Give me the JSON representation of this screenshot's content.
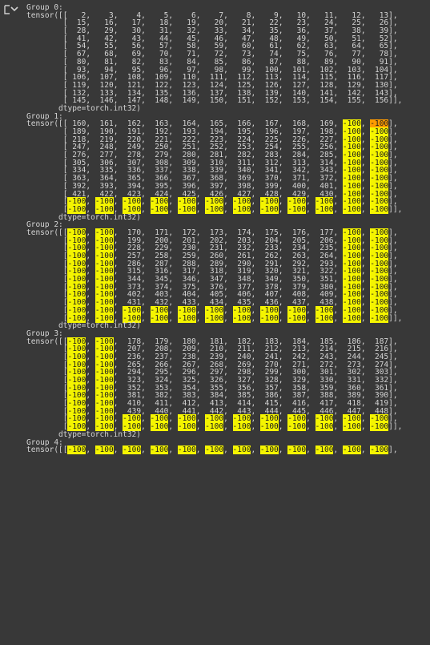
{
  "output": {
    "groups": [
      {
        "header": "Group 0:",
        "rows": [
          [
            2,
            3,
            4,
            5,
            6,
            7,
            8,
            9,
            10,
            11,
            12,
            13
          ],
          [
            15,
            16,
            17,
            18,
            19,
            20,
            21,
            22,
            23,
            24,
            25,
            26
          ],
          [
            28,
            29,
            30,
            31,
            32,
            33,
            34,
            35,
            36,
            37,
            38,
            39
          ],
          [
            41,
            42,
            43,
            44,
            45,
            46,
            47,
            48,
            49,
            50,
            51,
            52
          ],
          [
            54,
            55,
            56,
            57,
            58,
            59,
            60,
            61,
            62,
            63,
            64,
            65
          ],
          [
            67,
            68,
            69,
            70,
            71,
            72,
            73,
            74,
            75,
            76,
            77,
            78
          ],
          [
            80,
            81,
            82,
            83,
            84,
            85,
            86,
            87,
            88,
            89,
            90,
            91
          ],
          [
            93,
            94,
            95,
            96,
            97,
            98,
            99,
            100,
            101,
            102,
            103,
            104
          ],
          [
            106,
            107,
            108,
            109,
            110,
            111,
            112,
            113,
            114,
            115,
            116,
            117
          ],
          [
            119,
            120,
            121,
            122,
            123,
            124,
            125,
            126,
            127,
            128,
            129,
            130
          ],
          [
            132,
            133,
            134,
            135,
            136,
            137,
            138,
            139,
            140,
            141,
            142,
            143
          ],
          [
            145,
            146,
            147,
            148,
            149,
            150,
            151,
            152,
            153,
            154,
            155,
            156
          ]
        ],
        "dtype": "dtype=torch.int32)"
      },
      {
        "header": "Group 1:",
        "rows": [
          [
            160,
            161,
            162,
            163,
            164,
            165,
            166,
            167,
            168,
            169,
            -100,
            -100
          ],
          [
            189,
            190,
            191,
            192,
            193,
            194,
            195,
            196,
            197,
            198,
            -100,
            -100
          ],
          [
            218,
            219,
            220,
            221,
            222,
            223,
            224,
            225,
            226,
            227,
            -100,
            -100
          ],
          [
            247,
            248,
            249,
            250,
            251,
            252,
            253,
            254,
            255,
            256,
            -100,
            -100
          ],
          [
            276,
            277,
            278,
            279,
            280,
            281,
            282,
            283,
            284,
            285,
            -100,
            -100
          ],
          [
            305,
            306,
            307,
            308,
            309,
            310,
            311,
            312,
            313,
            314,
            -100,
            -100
          ],
          [
            334,
            335,
            336,
            337,
            338,
            339,
            340,
            341,
            342,
            343,
            -100,
            -100
          ],
          [
            363,
            364,
            365,
            366,
            367,
            368,
            369,
            370,
            371,
            372,
            -100,
            -100
          ],
          [
            392,
            393,
            394,
            395,
            396,
            397,
            398,
            399,
            400,
            401,
            -100,
            -100
          ],
          [
            421,
            422,
            423,
            424,
            425,
            426,
            427,
            428,
            429,
            430,
            -100,
            -100
          ],
          [
            -100,
            -100,
            -100,
            -100,
            -100,
            -100,
            -100,
            -100,
            -100,
            -100,
            -100,
            -100
          ],
          [
            -100,
            -100,
            -100,
            -100,
            -100,
            -100,
            -100,
            -100,
            -100,
            -100,
            -100,
            -100
          ]
        ],
        "dtype": "dtype=torch.int32)"
      },
      {
        "header": "Group 2:",
        "rows": [
          [
            -100,
            -100,
            170,
            171,
            172,
            173,
            174,
            175,
            176,
            177,
            -100,
            -100
          ],
          [
            -100,
            -100,
            199,
            200,
            201,
            202,
            203,
            204,
            205,
            206,
            -100,
            -100
          ],
          [
            -100,
            -100,
            228,
            229,
            230,
            231,
            232,
            233,
            234,
            235,
            -100,
            -100
          ],
          [
            -100,
            -100,
            257,
            258,
            259,
            260,
            261,
            262,
            263,
            264,
            -100,
            -100
          ],
          [
            -100,
            -100,
            286,
            287,
            288,
            289,
            290,
            291,
            292,
            293,
            -100,
            -100
          ],
          [
            -100,
            -100,
            315,
            316,
            317,
            318,
            319,
            320,
            321,
            322,
            -100,
            -100
          ],
          [
            -100,
            -100,
            344,
            345,
            346,
            347,
            348,
            349,
            350,
            351,
            -100,
            -100
          ],
          [
            -100,
            -100,
            373,
            374,
            375,
            376,
            377,
            378,
            379,
            380,
            -100,
            -100
          ],
          [
            -100,
            -100,
            402,
            403,
            404,
            405,
            406,
            407,
            408,
            409,
            -100,
            -100
          ],
          [
            -100,
            -100,
            431,
            432,
            433,
            434,
            435,
            436,
            437,
            438,
            -100,
            -100
          ],
          [
            -100,
            -100,
            -100,
            -100,
            -100,
            -100,
            -100,
            -100,
            -100,
            -100,
            -100,
            -100
          ],
          [
            -100,
            -100,
            -100,
            -100,
            -100,
            -100,
            -100,
            -100,
            -100,
            -100,
            -100,
            -100
          ]
        ],
        "dtype": "dtype=torch.int32)"
      },
      {
        "header": "Group 3:",
        "rows": [
          [
            -100,
            -100,
            178,
            179,
            180,
            181,
            182,
            183,
            184,
            185,
            186,
            187
          ],
          [
            -100,
            -100,
            207,
            208,
            209,
            210,
            211,
            212,
            213,
            214,
            215,
            216
          ],
          [
            -100,
            -100,
            236,
            237,
            238,
            239,
            240,
            241,
            242,
            243,
            244,
            245
          ],
          [
            -100,
            -100,
            265,
            266,
            267,
            268,
            269,
            270,
            271,
            272,
            273,
            274
          ],
          [
            -100,
            -100,
            294,
            295,
            296,
            297,
            298,
            299,
            300,
            301,
            302,
            303
          ],
          [
            -100,
            -100,
            323,
            324,
            325,
            326,
            327,
            328,
            329,
            330,
            331,
            332
          ],
          [
            -100,
            -100,
            352,
            353,
            354,
            355,
            356,
            357,
            358,
            359,
            360,
            361
          ],
          [
            -100,
            -100,
            381,
            382,
            383,
            384,
            385,
            386,
            387,
            388,
            389,
            390
          ],
          [
            -100,
            -100,
            410,
            411,
            412,
            413,
            414,
            415,
            416,
            417,
            418,
            419
          ],
          [
            -100,
            -100,
            439,
            440,
            441,
            442,
            443,
            444,
            445,
            446,
            447,
            448
          ],
          [
            -100,
            -100,
            -100,
            -100,
            -100,
            -100,
            -100,
            -100,
            -100,
            -100,
            -100,
            -100
          ],
          [
            -100,
            -100,
            -100,
            -100,
            -100,
            -100,
            -100,
            -100,
            -100,
            -100,
            -100,
            -100
          ]
        ],
        "dtype": "dtype=torch.int32)"
      },
      {
        "header": "Group 4:",
        "rows": [
          [
            -100,
            -100,
            -100,
            -100,
            -100,
            -100,
            -100,
            -100,
            -100,
            -100,
            -100,
            -100
          ]
        ],
        "dtype": ""
      }
    ],
    "tensor_prefix": "tensor(",
    "highlight_color": "#f4f400",
    "selected_highlight_color": "#ff9b00",
    "icon": "output-expand-icon"
  }
}
